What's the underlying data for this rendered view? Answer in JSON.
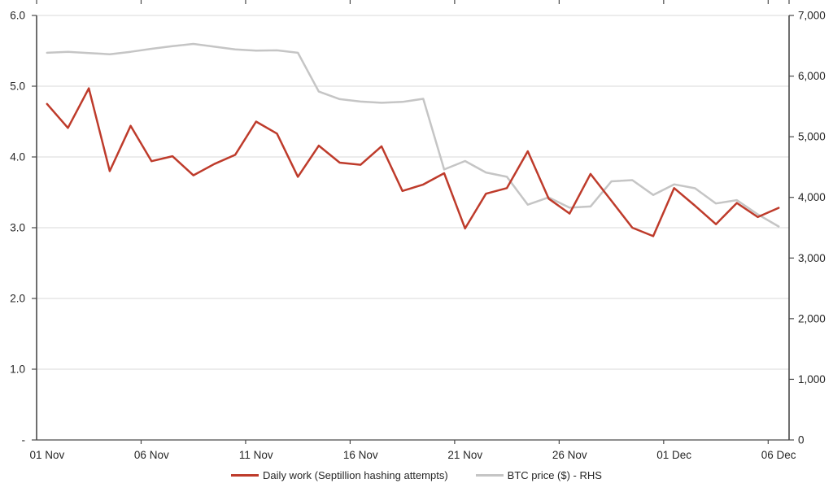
{
  "chart_data": {
    "type": "line",
    "title": "",
    "x": [
      "01 Nov",
      "02 Nov",
      "03 Nov",
      "04 Nov",
      "05 Nov",
      "06 Nov",
      "07 Nov",
      "08 Nov",
      "09 Nov",
      "10 Nov",
      "11 Nov",
      "12 Nov",
      "13 Nov",
      "14 Nov",
      "15 Nov",
      "16 Nov",
      "17 Nov",
      "18 Nov",
      "19 Nov",
      "20 Nov",
      "21 Nov",
      "22 Nov",
      "23 Nov",
      "24 Nov",
      "25 Nov",
      "26 Nov",
      "27 Nov",
      "28 Nov",
      "29 Nov",
      "30 Nov",
      "01 Dec",
      "02 Dec",
      "03 Dec",
      "04 Dec",
      "05 Dec",
      "06 Dec"
    ],
    "series": [
      {
        "name": "Daily work (Septillion hashing attempts)",
        "axis": "left",
        "color": "#be3b2b",
        "values": [
          4.75,
          4.41,
          4.97,
          3.8,
          4.44,
          3.94,
          4.01,
          3.74,
          3.9,
          4.03,
          4.5,
          4.33,
          3.72,
          4.16,
          3.92,
          3.89,
          4.15,
          3.52,
          3.61,
          3.77,
          2.99,
          3.48,
          3.56,
          4.08,
          3.41,
          3.2,
          3.76,
          3.38,
          3.0,
          2.88,
          3.56,
          3.31,
          3.05,
          3.35,
          3.15,
          3.28
        ]
      },
      {
        "name": "BTC price ($) - RHS",
        "axis": "right",
        "color": "#c5c5c5",
        "values": [
          6385,
          6400,
          6380,
          6360,
          6400,
          6450,
          6495,
          6530,
          6485,
          6440,
          6420,
          6425,
          6385,
          5745,
          5620,
          5580,
          5560,
          5575,
          5625,
          4460,
          4600,
          4410,
          4340,
          3880,
          4000,
          3830,
          3850,
          4265,
          4285,
          4040,
          4215,
          4150,
          3900,
          3955,
          3720,
          3520
        ]
      }
    ],
    "left_axis": {
      "tick_labels": [
        "6.0",
        "5.0",
        "4.0",
        "3.0",
        "2.0",
        "1.0",
        "-"
      ],
      "tick_values": [
        6,
        5,
        4,
        3,
        2,
        1,
        0
      ],
      "range": [
        0,
        6
      ]
    },
    "right_axis": {
      "tick_labels": [
        "7,000",
        "6,000",
        "5,000",
        "4,000",
        "3,000",
        "2,000",
        "1,000",
        "0"
      ],
      "tick_values": [
        7000,
        6000,
        5000,
        4000,
        3000,
        2000,
        1000,
        0
      ],
      "range": [
        0,
        7000
      ]
    },
    "x_axis": {
      "tick_labels": [
        "01 Nov",
        "06 Nov",
        "11 Nov",
        "16 Nov",
        "21 Nov",
        "26 Nov",
        "01 Dec",
        "06 Dec"
      ],
      "label_day_indices": [
        0,
        5,
        10,
        15,
        20,
        25,
        30,
        35
      ],
      "boundary_tick_interval": 5
    },
    "legend": {
      "position": "bottom"
    },
    "grid": "horizontal-only",
    "colors": {
      "work_line": "#be3b2b",
      "btc_line": "#c5c5c5",
      "gridline": "#d9d9d9",
      "axis": "#4a4a4a",
      "text": "#262626"
    }
  }
}
